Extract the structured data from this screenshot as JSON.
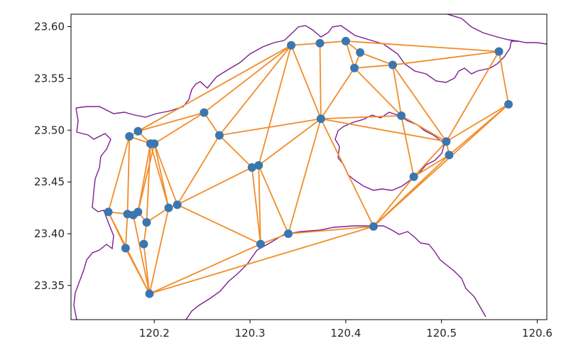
{
  "chart_data": {
    "type": "scatter",
    "title": "",
    "xlabel": "",
    "ylabel": "",
    "xlim": [
      120.113,
      120.61
    ],
    "ylim": [
      23.317,
      23.612
    ],
    "x_ticks": [
      "120.2",
      "120.3",
      "120.4",
      "120.5",
      "120.6"
    ],
    "x_tick_values": [
      120.2,
      120.3,
      120.4,
      120.5,
      120.6
    ],
    "y_ticks": [
      "23.35",
      "23.40",
      "23.45",
      "23.50",
      "23.55",
      "23.60"
    ],
    "y_tick_values": [
      23.35,
      23.4,
      23.45,
      23.5,
      23.55,
      23.6
    ],
    "grid": false,
    "legend": "none",
    "colors": {
      "points": "#3a77b0",
      "edges": "#f28c28",
      "boundary": "#7b1f8f",
      "axes": "#000000"
    },
    "points": [
      {
        "x": 120.152,
        "y": 23.421
      },
      {
        "x": 120.17,
        "y": 23.386
      },
      {
        "x": 120.172,
        "y": 23.419
      },
      {
        "x": 120.178,
        "y": 23.418
      },
      {
        "x": 120.183,
        "y": 23.421
      },
      {
        "x": 120.189,
        "y": 23.39
      },
      {
        "x": 120.192,
        "y": 23.411
      },
      {
        "x": 120.195,
        "y": 23.342
      },
      {
        "x": 120.174,
        "y": 23.494
      },
      {
        "x": 120.183,
        "y": 23.499
      },
      {
        "x": 120.196,
        "y": 23.487
      },
      {
        "x": 120.2,
        "y": 23.487
      },
      {
        "x": 120.215,
        "y": 23.425
      },
      {
        "x": 120.224,
        "y": 23.428
      },
      {
        "x": 120.252,
        "y": 23.517
      },
      {
        "x": 120.268,
        "y": 23.495
      },
      {
        "x": 120.302,
        "y": 23.464
      },
      {
        "x": 120.309,
        "y": 23.466
      },
      {
        "x": 120.311,
        "y": 23.39
      },
      {
        "x": 120.34,
        "y": 23.4
      },
      {
        "x": 120.343,
        "y": 23.582
      },
      {
        "x": 120.373,
        "y": 23.584
      },
      {
        "x": 120.374,
        "y": 23.511
      },
      {
        "x": 120.4,
        "y": 23.586
      },
      {
        "x": 120.409,
        "y": 23.56
      },
      {
        "x": 120.415,
        "y": 23.575
      },
      {
        "x": 120.429,
        "y": 23.407
      },
      {
        "x": 120.449,
        "y": 23.563
      },
      {
        "x": 120.458,
        "y": 23.514
      },
      {
        "x": 120.471,
        "y": 23.455
      },
      {
        "x": 120.505,
        "y": 23.489
      },
      {
        "x": 120.508,
        "y": 23.476
      },
      {
        "x": 120.56,
        "y": 23.576
      },
      {
        "x": 120.57,
        "y": 23.525
      }
    ],
    "edges": [
      [
        0,
        1
      ],
      [
        0,
        2
      ],
      [
        0,
        8
      ],
      [
        0,
        7
      ],
      [
        1,
        2
      ],
      [
        1,
        7
      ],
      [
        2,
        3
      ],
      [
        2,
        8
      ],
      [
        3,
        4
      ],
      [
        3,
        7
      ],
      [
        4,
        6
      ],
      [
        4,
        10
      ],
      [
        4,
        11
      ],
      [
        5,
        6
      ],
      [
        5,
        7
      ],
      [
        6,
        12
      ],
      [
        6,
        10
      ],
      [
        7,
        12
      ],
      [
        7,
        18
      ],
      [
        7,
        26
      ],
      [
        8,
        9
      ],
      [
        8,
        10
      ],
      [
        9,
        10
      ],
      [
        9,
        14
      ],
      [
        9,
        20
      ],
      [
        10,
        11
      ],
      [
        10,
        12
      ],
      [
        11,
        12
      ],
      [
        11,
        13
      ],
      [
        11,
        14
      ],
      [
        12,
        13
      ],
      [
        13,
        15
      ],
      [
        13,
        16
      ],
      [
        13,
        18
      ],
      [
        14,
        15
      ],
      [
        14,
        20
      ],
      [
        15,
        16
      ],
      [
        15,
        20
      ],
      [
        15,
        22
      ],
      [
        16,
        17
      ],
      [
        16,
        18
      ],
      [
        17,
        18
      ],
      [
        17,
        19
      ],
      [
        17,
        20
      ],
      [
        17,
        22
      ],
      [
        18,
        19
      ],
      [
        19,
        22
      ],
      [
        19,
        26
      ],
      [
        20,
        21
      ],
      [
        20,
        22
      ],
      [
        21,
        22
      ],
      [
        21,
        23
      ],
      [
        22,
        24
      ],
      [
        22,
        26
      ],
      [
        22,
        28
      ],
      [
        22,
        30
      ],
      [
        23,
        24
      ],
      [
        23,
        25
      ],
      [
        23,
        32
      ],
      [
        24,
        25
      ],
      [
        24,
        27
      ],
      [
        24,
        28
      ],
      [
        25,
        27
      ],
      [
        26,
        29
      ],
      [
        26,
        31
      ],
      [
        26,
        33
      ],
      [
        27,
        28
      ],
      [
        27,
        30
      ],
      [
        27,
        32
      ],
      [
        28,
        29
      ],
      [
        28,
        30
      ],
      [
        29,
        30
      ],
      [
        29,
        31
      ],
      [
        30,
        31
      ],
      [
        30,
        32
      ],
      [
        30,
        33
      ],
      [
        31,
        33
      ],
      [
        32,
        33
      ]
    ]
  }
}
